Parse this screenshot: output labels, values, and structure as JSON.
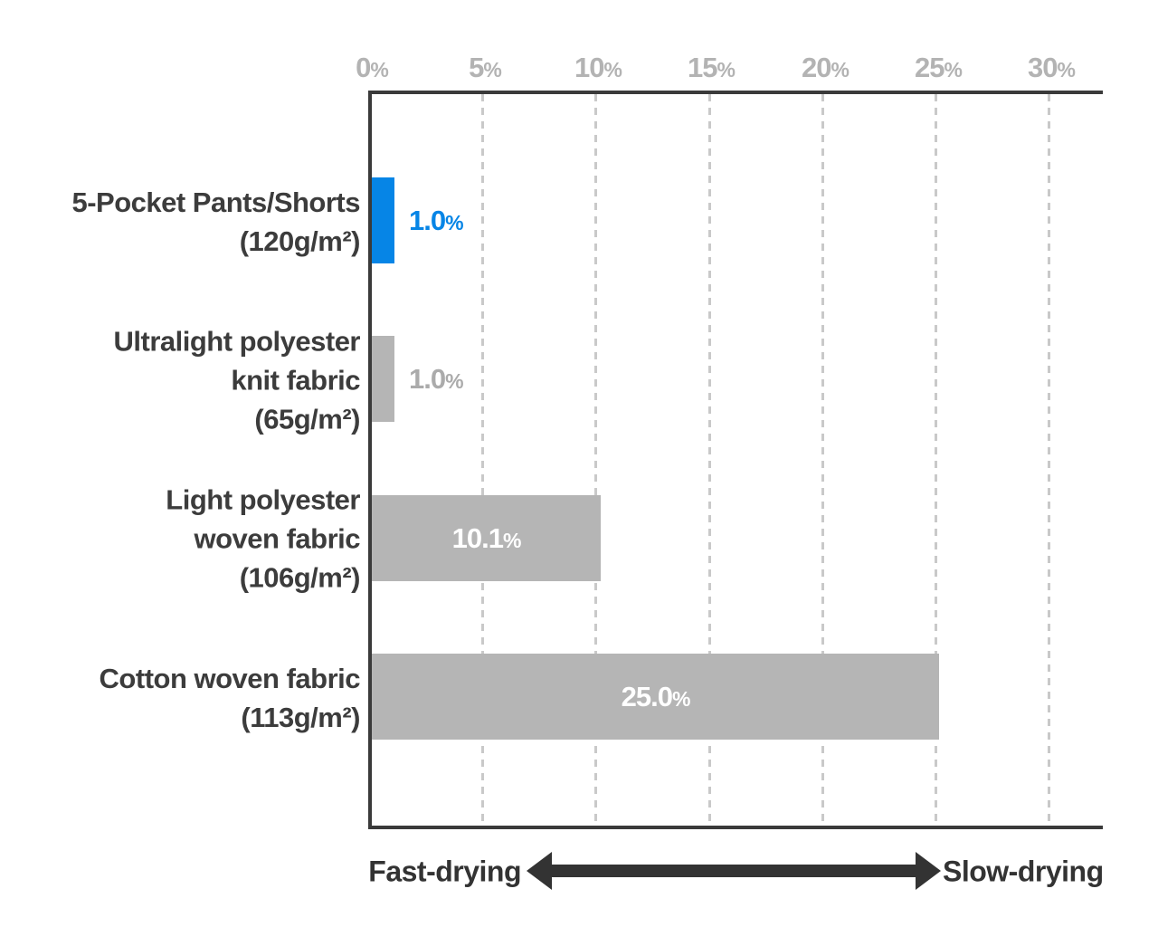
{
  "chart_data": {
    "type": "bar",
    "orientation": "horizontal",
    "title": "",
    "categories": [
      "5-Pocket Pants/Shorts (120g/m²)",
      "Ultralight polyester knit fabric (65g/m²)",
      "Light polyester woven fabric (106g/m²)",
      "Cotton woven fabric (113g/m²)"
    ],
    "values": [
      1.0,
      1.0,
      10.1,
      25.0
    ],
    "unit": "%",
    "xlim": [
      0,
      32
    ],
    "x_ticks": [
      0,
      5,
      10,
      15,
      20,
      25,
      30
    ],
    "axis_position": "top",
    "grid": "dashed-vertical",
    "legend": "none",
    "bar_colors": [
      "#0685e6",
      "#b5b5b5",
      "#b5b5b5",
      "#b5b5b5"
    ],
    "highlight_index": 0,
    "annotation": "Fast-drying ↔ Slow-drying arrow below chart"
  },
  "colors": {
    "accent_blue": "#0685e6",
    "bar_gray": "#b5b5b5",
    "axis_text_gray": "#b3b3b3",
    "grid_gray": "#c9c9c9",
    "dark_text": "#3c3c3c",
    "arrow_dark": "#333333"
  },
  "x_axis": {
    "ticks": [
      {
        "num": "0",
        "sign": "%"
      },
      {
        "num": "5",
        "sign": "%"
      },
      {
        "num": "10",
        "sign": "%"
      },
      {
        "num": "15",
        "sign": "%"
      },
      {
        "num": "20",
        "sign": "%"
      },
      {
        "num": "25",
        "sign": "%"
      },
      {
        "num": "30",
        "sign": "%"
      }
    ]
  },
  "bars": [
    {
      "label_lines": [
        "5-Pocket Pants/Shorts",
        "(120g/m²)"
      ],
      "value_label": {
        "num": "1.0",
        "sign": "%"
      },
      "value_color": "#0685e6"
    },
    {
      "label_lines": [
        "Ultralight polyester",
        "knit fabric",
        "(65g/m²)"
      ],
      "value_label": {
        "num": "1.0",
        "sign": "%"
      },
      "value_color": "#ababab"
    },
    {
      "label_lines": [
        "Light polyester",
        "woven fabric",
        "(106g/m²)"
      ],
      "value_label": {
        "num": "10.1",
        "sign": "%"
      },
      "value_color": "#ffffff"
    },
    {
      "label_lines": [
        "Cotton woven fabric",
        "(113g/m²)"
      ],
      "value_label": {
        "num": "25.0",
        "sign": "%"
      },
      "value_color": "#ffffff"
    }
  ],
  "footer": {
    "left_label": "Fast-drying",
    "right_label": "Slow-drying"
  }
}
